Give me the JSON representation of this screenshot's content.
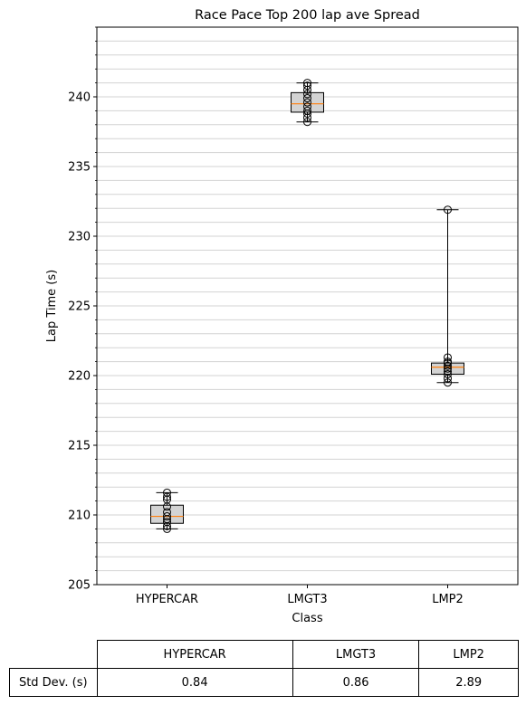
{
  "chart_data": {
    "type": "box",
    "title": "Race Pace Top 200 lap ave Spread",
    "xlabel": "Class",
    "ylabel": "Lap Time (s)",
    "ylim": [
      205,
      245
    ],
    "yticks": [
      205,
      210,
      215,
      220,
      225,
      230,
      235,
      240
    ],
    "minor_grid_step": 1,
    "grid": "horizontal",
    "categories": [
      "HYPERCAR",
      "LMGT3",
      "LMP2"
    ],
    "boxes": [
      {
        "category": "HYPERCAR",
        "whisker_low": 209.0,
        "q1": 209.4,
        "median": 209.9,
        "q3": 210.7,
        "whisker_high": 211.6,
        "points": [
          209.0,
          209.2,
          209.5,
          209.7,
          209.9,
          210.2,
          210.6,
          211.1,
          211.3,
          211.6
        ]
      },
      {
        "category": "LMGT3",
        "whisker_low": 238.2,
        "q1": 238.9,
        "median": 239.5,
        "q3": 240.3,
        "whisker_high": 241.0,
        "points": [
          238.2,
          238.5,
          238.8,
          239.0,
          239.3,
          239.6,
          239.9,
          240.2,
          240.5,
          240.8,
          241.0
        ]
      },
      {
        "category": "LMP2",
        "whisker_low": 219.5,
        "q1": 220.1,
        "median": 220.6,
        "q3": 220.9,
        "whisker_high": 231.9,
        "points": [
          219.5,
          219.8,
          220.1,
          220.3,
          220.5,
          220.7,
          220.9,
          221.0,
          221.3,
          231.9
        ]
      }
    ],
    "colors": {
      "box_fill": "#d3d3d3",
      "median": "#ff7f0e",
      "grid": "#d3d3d3"
    }
  },
  "table": {
    "columns": [
      "HYPERCAR",
      "LMGT3",
      "LMP2"
    ],
    "row_label": "Std Dev. (s)",
    "values": [
      "0.84",
      "0.86",
      "2.89"
    ]
  }
}
